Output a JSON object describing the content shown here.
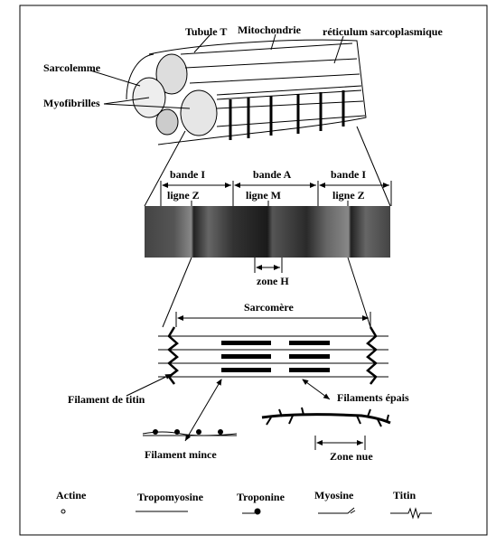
{
  "fiber": {
    "tubule_t": "Tubule T",
    "mitochondria": "Mitochondrie",
    "reticulum": "réticulum sarcoplasmique",
    "sarcolemma": "Sarcolemme",
    "myofibrils": "Myofibrilles"
  },
  "micrograph": {
    "band_i_left": "bande I",
    "band_a": "bande A",
    "band_i_right": "bande I",
    "line_z_left": "ligne Z",
    "line_m": "ligne M",
    "line_z_right": "ligne Z",
    "zone_h": "zone H"
  },
  "sarcomere": {
    "title": "Sarcomère",
    "titin_filament": "Filament de titin",
    "thick_filaments": "Filaments épais",
    "thin_filament": "Filament mince",
    "bare_zone": "Zone nue"
  },
  "legend": [
    "Actine",
    "Tropomyosine",
    "Troponine",
    "Myosine",
    "Titin"
  ]
}
